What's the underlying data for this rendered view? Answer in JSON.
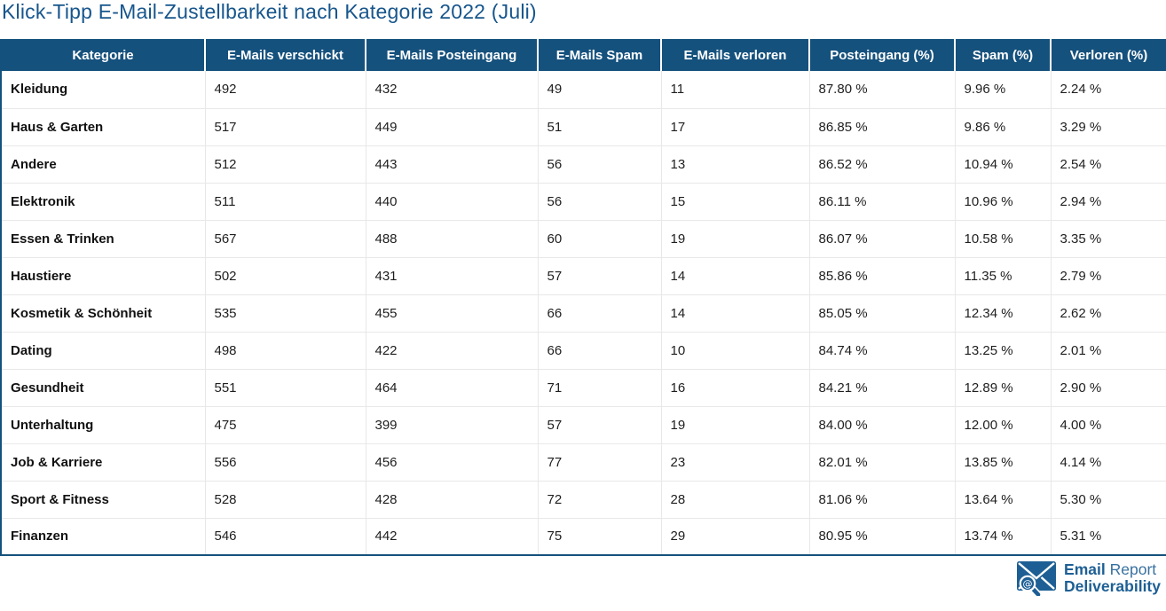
{
  "title": "Klick-Tipp E-Mail-Zustellbarkeit nach Kategorie 2022 (Juli)",
  "chart_data": {
    "type": "table",
    "title": "Klick-Tipp E-Mail-Zustellbarkeit nach Kategorie 2022 (Juli)",
    "columns": [
      "Kategorie",
      "E-Mails verschickt",
      "E-Mails Posteingang",
      "E-Mails Spam",
      "E-Mails verloren",
      "Posteingang (%)",
      "Spam (%)",
      "Verloren (%)"
    ],
    "rows": [
      [
        "Kleidung",
        "492",
        "432",
        "49",
        "11",
        "87.80 %",
        "9.96 %",
        "2.24 %"
      ],
      [
        "Haus & Garten",
        "517",
        "449",
        "51",
        "17",
        "86.85 %",
        "9.86 %",
        "3.29 %"
      ],
      [
        "Andere",
        "512",
        "443",
        "56",
        "13",
        "86.52 %",
        "10.94 %",
        "2.54 %"
      ],
      [
        "Elektronik",
        "511",
        "440",
        "56",
        "15",
        "86.11 %",
        "10.96 %",
        "2.94 %"
      ],
      [
        "Essen & Trinken",
        "567",
        "488",
        "60",
        "19",
        "86.07 %",
        "10.58 %",
        "3.35 %"
      ],
      [
        "Haustiere",
        "502",
        "431",
        "57",
        "14",
        "85.86 %",
        "11.35 %",
        "2.79 %"
      ],
      [
        "Kosmetik & Schönheit",
        "535",
        "455",
        "66",
        "14",
        "85.05 %",
        "12.34 %",
        "2.62 %"
      ],
      [
        "Dating",
        "498",
        "422",
        "66",
        "10",
        "84.74 %",
        "13.25 %",
        "2.01 %"
      ],
      [
        "Gesundheit",
        "551",
        "464",
        "71",
        "16",
        "84.21 %",
        "12.89 %",
        "2.90 %"
      ],
      [
        "Unterhaltung",
        "475",
        "399",
        "57",
        "19",
        "84.00 %",
        "12.00 %",
        "4.00 %"
      ],
      [
        "Job & Karriere",
        "556",
        "456",
        "77",
        "23",
        "82.01 %",
        "13.85 %",
        "4.14 %"
      ],
      [
        "Sport & Fitness",
        "528",
        "428",
        "72",
        "28",
        "81.06 %",
        "13.64 %",
        "5.30 %"
      ],
      [
        "Finanzen",
        "546",
        "442",
        "75",
        "29",
        "80.95 %",
        "13.74 %",
        "5.31 %"
      ]
    ],
    "layout": {
      "header_position": "top",
      "grid": true
    }
  },
  "logo": {
    "line1_bold": "Email",
    "line1_regular": "Report",
    "line2_bold": "Deliverability",
    "icon": "envelope-magnifier-icon"
  },
  "colors": {
    "title_text": "#17568c",
    "header_bg": "#15517d",
    "header_text": "#ffffff",
    "table_border": "#15517d",
    "row_divider": "#e8e8e8",
    "body_text": "#1e1e1e",
    "logo_blue": "#1d5f94"
  }
}
